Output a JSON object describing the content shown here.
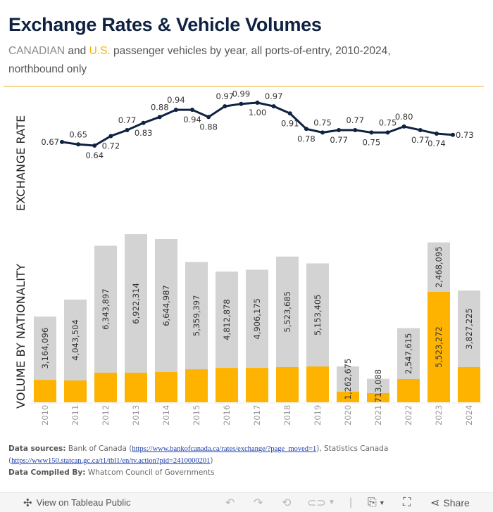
{
  "header": {
    "title": "Exchange Rates & Vehicle Volumes",
    "subtitle_can": "CANADIAN",
    "subtitle_and": " and ",
    "subtitle_us": "U.S.",
    "subtitle_rest": " passenger vehicles by year, all ports-of-entry, 2010-2024, northbound only"
  },
  "colors": {
    "title": "#0f2241",
    "line": "#0f2241",
    "canadian": "#d3d3d3",
    "us": "#fdb300",
    "divider": "#f0b323"
  },
  "chart_data": [
    {
      "type": "line",
      "ylabel": "EXCHANGE RATE",
      "x_points": 25,
      "values": [
        0.67,
        0.65,
        0.64,
        0.72,
        0.77,
        0.83,
        0.88,
        0.94,
        0.94,
        0.88,
        0.97,
        0.99,
        1.0,
        0.97,
        0.91,
        0.78,
        0.75,
        0.77,
        0.77,
        0.75,
        0.75,
        0.8,
        0.77,
        0.74,
        0.73
      ],
      "label_positions": [
        "left",
        "above",
        "below",
        "below",
        "above",
        "below",
        "above",
        "above",
        "below",
        "below",
        "above",
        "above",
        "below",
        "above",
        "below",
        "below",
        "above",
        "below",
        "above",
        "below",
        "above",
        "above",
        "below",
        "below",
        "right"
      ],
      "ylim": [
        0.55,
        1.05
      ],
      "grid": false
    },
    {
      "type": "bar",
      "stacked": true,
      "ylabel": "VOLUME BY NATIONALITY",
      "categories": [
        "2010",
        "2011",
        "2012",
        "2013",
        "2014",
        "2015",
        "2016",
        "2017",
        "2018",
        "2019",
        "2020",
        "2021",
        "2022",
        "2023",
        "2024"
      ],
      "series": [
        {
          "name": "U.S.",
          "values": [
            1120000,
            1090000,
            1480000,
            1480000,
            1510000,
            1650000,
            1720000,
            1720000,
            1760000,
            1790000,
            530000,
            460000,
            1160000,
            5523272,
            1760000
          ]
        },
        {
          "name": "CANADIAN",
          "values": [
            3164096,
            4043504,
            6343897,
            6922314,
            6644987,
            5359397,
            4812878,
            4906175,
            5523685,
            5153405,
            1262675,
            713088,
            2547615,
            2468095,
            3827225
          ]
        }
      ],
      "labels": [
        {
          "series": "CANADIAN",
          "text": [
            "3,164,096",
            "4,043,504",
            "6,343,897",
            "6,922,314",
            "6,644,987",
            "5,359,397",
            "4,812,878",
            "4,906,175",
            "5,523,685",
            "5,153,405",
            "1,262,675",
            "713,088",
            "2,547,615",
            "2,468,095",
            "3,827,225"
          ]
        },
        {
          "series": "U.S.",
          "text": [
            "",
            "",
            "",
            "",
            "",
            "",
            "",
            "",
            "",
            "",
            "",
            "",
            "",
            "5,523,272",
            ""
          ]
        }
      ],
      "ylim": [
        0,
        8500000
      ],
      "grid": false
    }
  ],
  "footer": {
    "sources_label": "Data sources:",
    "sources_text1": " Bank of Canada (",
    "link1": "https://www.bankofcanada.ca/rates/exchange/?page_moved=1",
    "sources_text2": "), Statistics Canada",
    "link2_open": "(",
    "link2": "https://www150.statcan.gc.ca/t1/tbl1/en/tv.action?pid=2410000201",
    "link2_close": ")",
    "compiled_label": "Data Compiled By:",
    "compiled_text": " Whatcom Council of Governments"
  },
  "toolbar": {
    "view_label": "View on Tableau Public",
    "share_label": "Share"
  }
}
